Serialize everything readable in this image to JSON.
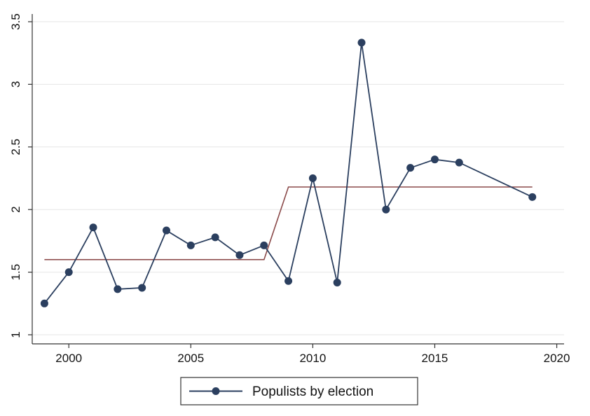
{
  "chart_data": {
    "type": "line",
    "title": "",
    "xlabel": "",
    "ylabel": "",
    "xlim": [
      1998.5,
      2020.3
    ],
    "ylim": [
      1,
      3.5
    ],
    "xticks": [
      2000,
      2005,
      2010,
      2015,
      2020
    ],
    "yticks": [
      1,
      1.5,
      2,
      2.5,
      3,
      3.5
    ],
    "xtick_labels": [
      "2000",
      "2005",
      "2010",
      "2015",
      "2020"
    ],
    "ytick_labels": [
      "1",
      "1.5",
      "2",
      "2.5",
      "3",
      "3.5"
    ],
    "grid": "horizontal",
    "legend_position": "bottom-center",
    "series": [
      {
        "name": "Populists by election",
        "style": "line-markers",
        "color": "#2b3f5f",
        "x": [
          1999,
          2000,
          2001,
          2002,
          2003,
          2004,
          2005,
          2006,
          2007,
          2008,
          2009,
          2010,
          2011,
          2012,
          2013,
          2014,
          2015,
          2016,
          2019
        ],
        "y": [
          1.25,
          1.5,
          1.857,
          1.364,
          1.375,
          1.833,
          1.714,
          1.778,
          1.636,
          1.714,
          1.429,
          2.25,
          1.417,
          3.333,
          2.0,
          2.333,
          2.4,
          2.375,
          2.1
        ]
      },
      {
        "style": "line",
        "color": "#8b4a4a",
        "x": [
          1999,
          2008,
          2009,
          2019
        ],
        "y": [
          1.6,
          1.6,
          2.18,
          2.18
        ]
      }
    ]
  }
}
